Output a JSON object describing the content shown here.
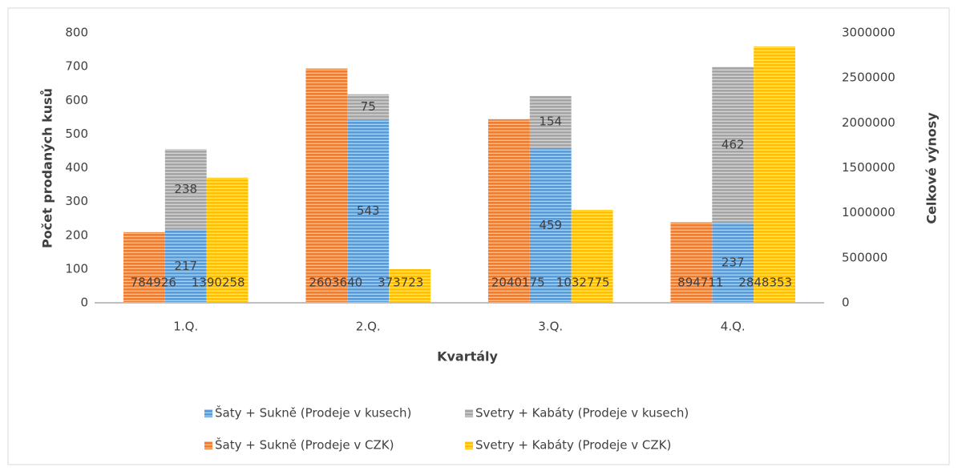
{
  "chart_data": {
    "type": "bar",
    "categories": [
      "1.Q.",
      "2.Q.",
      "3.Q.",
      "4.Q."
    ],
    "series": [
      {
        "name": "Šaty + Sukně (Prodeje v kusech)",
        "color": "#5b9bd5",
        "values": [
          217,
          543,
          459,
          237
        ]
      },
      {
        "name": "Svetry + Kabáty (Prodeje v kusech)",
        "color": "#a5a5a5",
        "values": [
          238,
          75,
          154,
          462
        ]
      },
      {
        "name": "Šaty + Sukně (Prodeje v CZK)",
        "color": "#ed7d31",
        "values": [
          784926,
          2603640,
          2040175,
          894711
        ],
        "axis": "y2"
      },
      {
        "name": "Svetry + Kabáty (Prodeje v CZK)",
        "color": "#ffc000",
        "values": [
          1390258,
          373723,
          1032775,
          2848353
        ],
        "axis": "y2"
      }
    ],
    "ylabel": "Počet prodaných kusů",
    "y2label": "Celkové výnosy",
    "xlabel": "Kvartály",
    "ylim": [
      0,
      800
    ],
    "yticks": [
      0,
      100,
      200,
      300,
      400,
      500,
      600,
      700,
      800
    ],
    "y2lim": [
      0,
      3000000
    ],
    "y2ticks": [
      0,
      500000,
      1000000,
      1500000,
      2000000,
      2500000,
      3000000
    ],
    "legend": "bottom"
  }
}
